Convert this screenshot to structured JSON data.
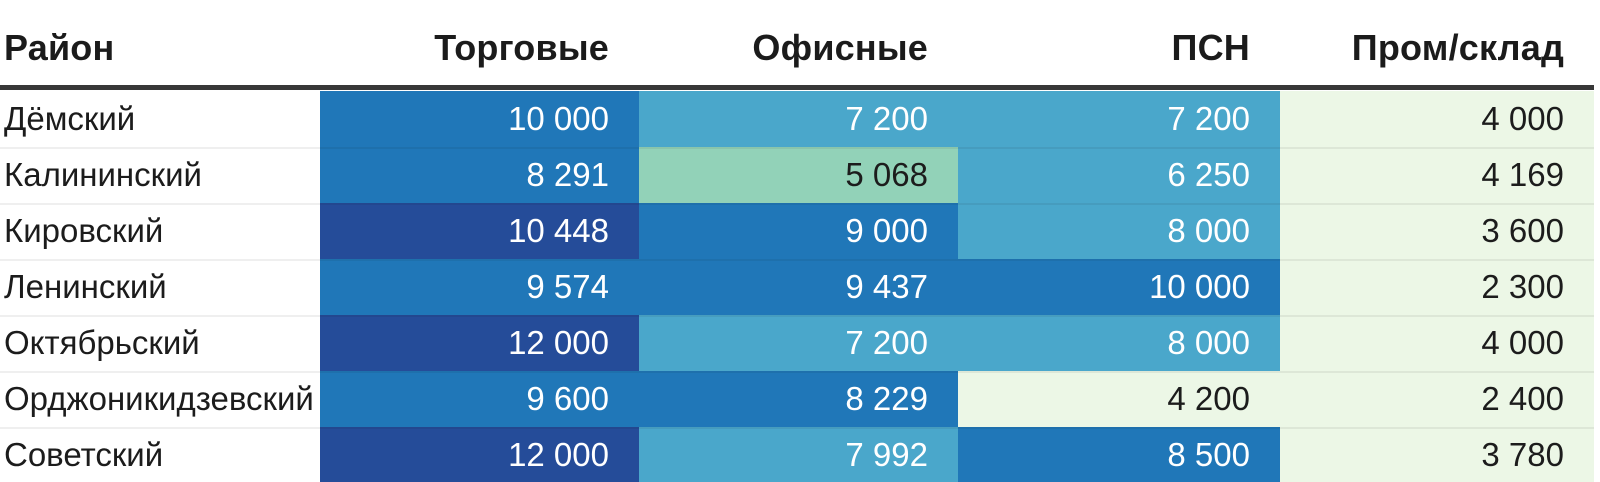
{
  "table": {
    "columns": [
      "Район",
      "Торговые",
      "Офисные",
      "ПСН",
      "Пром/склад"
    ],
    "rows": [
      {
        "label": "Дёмский",
        "cells": [
          {
            "text": "10 000",
            "level": "blue"
          },
          {
            "text": "7 200",
            "level": "teal"
          },
          {
            "text": "7 200",
            "level": "teal"
          },
          {
            "text": "4 000",
            "level": "pale"
          }
        ]
      },
      {
        "label": "Калининский",
        "cells": [
          {
            "text": "8 291",
            "level": "blue"
          },
          {
            "text": "5 068",
            "level": "green"
          },
          {
            "text": "6 250",
            "level": "teal"
          },
          {
            "text": "4 169",
            "level": "pale"
          }
        ]
      },
      {
        "label": "Кировский",
        "cells": [
          {
            "text": "10 448",
            "level": "navy"
          },
          {
            "text": "9 000",
            "level": "blue"
          },
          {
            "text": "8 000",
            "level": "teal"
          },
          {
            "text": "3 600",
            "level": "pale"
          }
        ]
      },
      {
        "label": "Ленинский",
        "cells": [
          {
            "text": "9 574",
            "level": "blue"
          },
          {
            "text": "9 437",
            "level": "blue"
          },
          {
            "text": "10 000",
            "level": "blue"
          },
          {
            "text": "2 300",
            "level": "pale"
          }
        ]
      },
      {
        "label": "Октябрьский",
        "cells": [
          {
            "text": "12 000",
            "level": "navy"
          },
          {
            "text": "7 200",
            "level": "teal"
          },
          {
            "text": "8 000",
            "level": "teal"
          },
          {
            "text": "4 000",
            "level": "pale"
          }
        ]
      },
      {
        "label": "Орджоникидзевский",
        "cells": [
          {
            "text": "9 600",
            "level": "blue"
          },
          {
            "text": "8 229",
            "level": "blue"
          },
          {
            "text": "4 200",
            "level": "pale"
          },
          {
            "text": "2 400",
            "level": "pale"
          }
        ]
      },
      {
        "label": "Советский",
        "cells": [
          {
            "text": "12 000",
            "level": "navy"
          },
          {
            "text": "7 992",
            "level": "teal"
          },
          {
            "text": "8 500",
            "level": "blue"
          },
          {
            "text": "3 780",
            "level": "pale"
          }
        ]
      }
    ]
  },
  "colors": {
    "navy": "#254c99",
    "blue": "#2077b8",
    "teal": "#4aa7cb",
    "green": "#92d2b8",
    "pale": "#ecf7e6",
    "header_rule": "#383838",
    "text_dark": "#1c1c1c",
    "text_white": "#ffffff"
  },
  "chart_data": {
    "type": "table",
    "title": "",
    "categories": [
      "Дёмский",
      "Калининский",
      "Кировский",
      "Ленинский",
      "Октябрьский",
      "Орджоникидзевский",
      "Советский"
    ],
    "series": [
      {
        "name": "Торговые",
        "values": [
          10000,
          8291,
          10448,
          9574,
          12000,
          9600,
          12000
        ]
      },
      {
        "name": "Офисные",
        "values": [
          7200,
          5068,
          9000,
          9437,
          7200,
          8229,
          7992
        ]
      },
      {
        "name": "ПСН",
        "values": [
          7200,
          6250,
          8000,
          10000,
          8000,
          4200,
          8500
        ]
      },
      {
        "name": "Пром/склад",
        "values": [
          4000,
          4169,
          3600,
          2300,
          4000,
          2400,
          3780
        ]
      }
    ],
    "value_range": [
      2300,
      12000
    ],
    "color_scale": "global heatmap: low values pale green -> green -> teal-blue -> medium blue -> dark navy for high values",
    "legend": "none",
    "grid": "off"
  }
}
